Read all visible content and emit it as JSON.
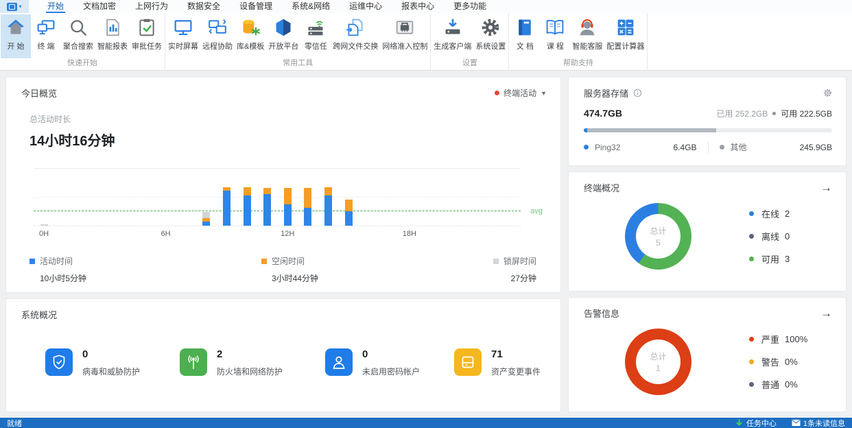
{
  "menubar": {
    "tabs": [
      {
        "label": "开始",
        "active": true
      },
      {
        "label": "文档加密",
        "active": false
      },
      {
        "label": "上网行为",
        "active": false
      },
      {
        "label": "数据安全",
        "active": false
      },
      {
        "label": "设备管理",
        "active": false
      },
      {
        "label": "系统&网络",
        "active": false
      },
      {
        "label": "运维中心",
        "active": false
      },
      {
        "label": "报表中心",
        "active": false
      },
      {
        "label": "更多功能",
        "active": false
      }
    ]
  },
  "ribbon": {
    "groups": [
      {
        "label": "快速开始",
        "buttons": [
          {
            "label": "开 始",
            "icon": "home",
            "active": true
          },
          {
            "label": "终 端",
            "icon": "terminal"
          },
          {
            "label": "聚合搜索",
            "icon": "search"
          },
          {
            "label": "智能报表",
            "icon": "report"
          },
          {
            "label": "审批任务",
            "icon": "approval"
          }
        ]
      },
      {
        "label": "常用工具",
        "buttons": [
          {
            "label": "实时屏幕",
            "icon": "screen"
          },
          {
            "label": "远程协助",
            "icon": "remote"
          },
          {
            "label": "库&模板",
            "icon": "library"
          },
          {
            "label": "开放平台",
            "icon": "platform"
          },
          {
            "label": "零信任",
            "icon": "zerotrust"
          },
          {
            "label": "跨网文件交换",
            "icon": "exchange"
          },
          {
            "label": "网络准入控制",
            "icon": "nac"
          }
        ]
      },
      {
        "label": "设置",
        "buttons": [
          {
            "label": "生成客户端",
            "icon": "client"
          },
          {
            "label": "系统设置",
            "icon": "settings"
          }
        ]
      },
      {
        "label": "帮助支持",
        "buttons": [
          {
            "label": "文 档",
            "icon": "doc"
          },
          {
            "label": "课 程",
            "icon": "course"
          },
          {
            "label": "智能客服",
            "icon": "service"
          },
          {
            "label": "配置计算器",
            "icon": "calculator"
          }
        ]
      }
    ]
  },
  "today": {
    "title": "今日概览",
    "filter": {
      "label": "终端活动",
      "dot_color": "#e2463c"
    },
    "total_label": "总活动时长",
    "total_value": "14小时16分钟",
    "chart_data": {
      "type": "bar",
      "stacked": true,
      "unit": "minutes-per-hour (1px = 1min)",
      "x_ticks": [
        {
          "hour": 0,
          "label": "0H"
        },
        {
          "hour": 6,
          "label": "6H"
        },
        {
          "hour": 12,
          "label": "12H"
        },
        {
          "hour": 18,
          "label": "18H"
        }
      ],
      "x_range_hours": [
        0,
        24
      ],
      "ymax": 85,
      "avg": 21,
      "avg_label": "avg",
      "avg_color": "#4caf50",
      "series": [
        {
          "key": "active",
          "name": "活动时间",
          "total": "10小时5分钟",
          "color": "#2e86e8"
        },
        {
          "key": "idle",
          "name": "空闲时间",
          "total": "3小时44分钟",
          "color": "#f59d25"
        },
        {
          "key": "locked",
          "name": "锁屏时间",
          "total": "27分钟",
          "color": "#d2d5d9"
        }
      ],
      "bars": [
        {
          "hour": 0,
          "active": 0,
          "idle": 0,
          "locked": 2
        },
        {
          "hour": 8,
          "active": 6,
          "idle": 5,
          "locked": 9
        },
        {
          "hour": 9,
          "active": 51,
          "idle": 5,
          "locked": 0
        },
        {
          "hour": 10,
          "active": 44,
          "idle": 12,
          "locked": 0
        },
        {
          "hour": 11,
          "active": 46,
          "idle": 9,
          "locked": 0
        },
        {
          "hour": 12,
          "active": 31,
          "idle": 24,
          "locked": 0
        },
        {
          "hour": 13,
          "active": 26,
          "idle": 29,
          "locked": 0
        },
        {
          "hour": 14,
          "active": 44,
          "idle": 12,
          "locked": 0
        },
        {
          "hour": 15,
          "active": 21,
          "idle": 17,
          "locked": 0
        }
      ]
    }
  },
  "storage": {
    "title": "服务器存储",
    "total": "474.7GB",
    "used_label": "已用",
    "used_value": "252.2GB",
    "free_label": "可用",
    "free_value": "222.5GB",
    "bar": {
      "segments": [
        {
          "name": "Ping32",
          "pct": 1.4,
          "color": "#2b7fe0"
        },
        {
          "name": "其他",
          "pct": 51.8,
          "color": "#b3b9c0"
        }
      ],
      "track_color": "#ebecee"
    },
    "items": [
      {
        "label": "Ping32",
        "value": "6.4GB",
        "color": "#2b7fe0"
      },
      {
        "label": "其他",
        "value": "245.9GB",
        "color": "#9aa0a6"
      }
    ]
  },
  "terminals": {
    "title": "终端概况",
    "center_label": "总计",
    "center_value": "5",
    "chart_data": {
      "type": "pie",
      "total": 5,
      "ring_order": [
        "可用",
        "在线",
        "离线"
      ],
      "slices": [
        {
          "label": "在线",
          "value": 2,
          "color": "#2b7fe0"
        },
        {
          "label": "离线",
          "value": 0,
          "color": "#5a6482"
        },
        {
          "label": "可用",
          "value": 3,
          "color": "#53b253"
        }
      ]
    }
  },
  "system": {
    "title": "系统概况",
    "items": [
      {
        "value": "0",
        "label": "病毒和威胁防护",
        "icon": "shield",
        "color": "#1f7ce8"
      },
      {
        "value": "2",
        "label": "防火墙和网络防护",
        "icon": "signal",
        "color": "#4caf50"
      },
      {
        "value": "0",
        "label": "未启用密码帐户",
        "icon": "user",
        "color": "#1f7ce8"
      },
      {
        "value": "71",
        "label": "资产变更事件",
        "icon": "device",
        "color": "#f5b71f"
      }
    ]
  },
  "alerts": {
    "title": "告警信息",
    "center_label": "总计",
    "center_value": "1",
    "chart_data": {
      "type": "pie",
      "total": 1,
      "ring_order": [
        "严重",
        "警告",
        "普通"
      ],
      "slices": [
        {
          "label": "严重",
          "value": 1,
          "pct_text": "100%",
          "color": "#dc3e16"
        },
        {
          "label": "警告",
          "value": 0,
          "pct_text": "0%",
          "color": "#f2aa1d"
        },
        {
          "label": "普通",
          "value": 0,
          "pct_text": "0%",
          "color": "#5a6482"
        }
      ]
    }
  },
  "statusbar": {
    "ready": "就绪",
    "task_center": "任务中心",
    "unread": "1条未读信息"
  }
}
